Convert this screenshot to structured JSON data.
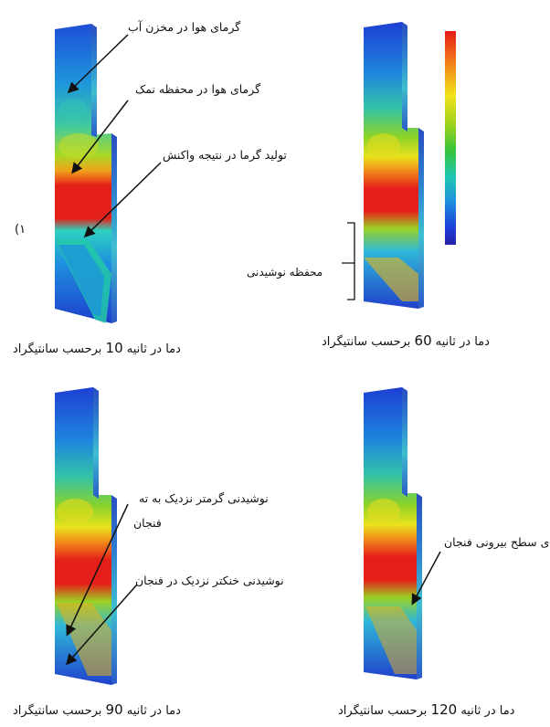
{
  "panels": {
    "p10": {
      "caption_pre": "دما در ثانیه",
      "caption_num": "10",
      "caption_post": "برحسب سانتیگراد",
      "number_mark": "(۱",
      "labels": [
        "گرمای هوا در مخزن آب",
        "گرمای هوا در محفظه نمک",
        "تولید گرما در نتیجه واکنش"
      ]
    },
    "p60": {
      "caption_pre": "دما در ثانیه",
      "caption_num": "60",
      "caption_post": "برحسب سانتیگراد",
      "labels": [
        "محفظه نوشیدنی"
      ]
    },
    "p90": {
      "caption_pre": "دما در ثانیه",
      "caption_num": "90",
      "caption_post": "برحسب سانتیگراد",
      "labels": [
        "نوشیدنی گرمتر نزدیک به ته",
        "فنجان",
        "نوشیدنی خنکتر نزدیک در فنجان"
      ]
    },
    "p120": {
      "caption_pre": "دما در ثانیه",
      "caption_num": "120",
      "caption_post": "برحسب سانتیگراد",
      "labels": [
        "دمای سطح بیرونی فنجان"
      ]
    }
  },
  "legend": {
    "colors": [
      "#e51a16",
      "#f27a18",
      "#f2e219",
      "#9bd21c",
      "#36c43c",
      "#1fc6b2",
      "#1d8fe0",
      "#1c3fd8",
      "#2a20a8"
    ]
  }
}
